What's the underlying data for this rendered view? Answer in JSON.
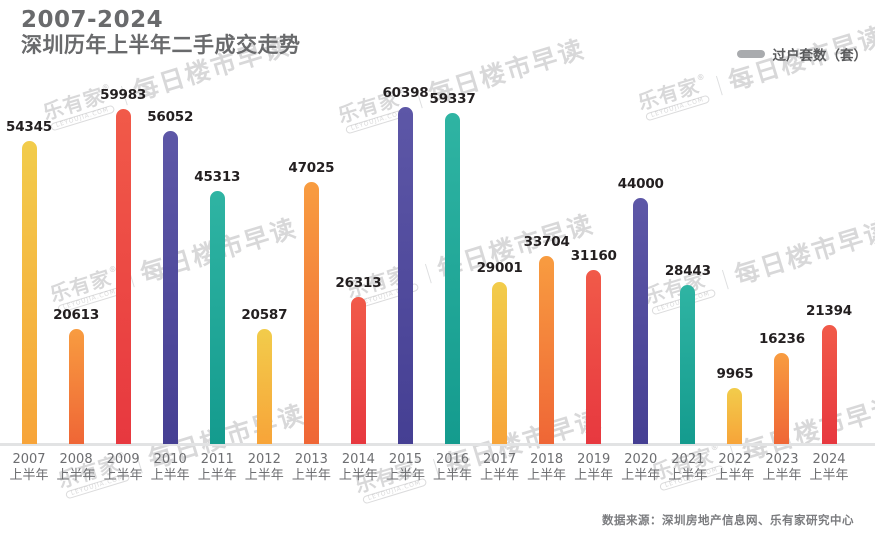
{
  "header": {
    "title_line1": "2007-2024",
    "title_line2": "深圳历年上半年二手成交走势"
  },
  "legend": {
    "label": "过户套数（套）",
    "swatch_color": "#A9ABAE"
  },
  "watermark": {
    "brand": "乐有家",
    "brand_mark": "®",
    "brand_sub": "LEYOUJIA.COM",
    "separator": "|",
    "phrase": "每日楼市早读"
  },
  "footer": {
    "source": "数据来源：深圳房地产信息网、乐有家研究中心"
  },
  "chart_data": {
    "type": "bar",
    "title": "2007-2024 深圳历年上半年二手成交走势",
    "series_name": "过户套数（套）",
    "categories": [
      "2007 上半年",
      "2008 上半年",
      "2009 上半年",
      "2010 上半年",
      "2011 上半年",
      "2012 上半年",
      "2013 上半年",
      "2014 上半年",
      "2015 上半年",
      "2016 上半年",
      "2017 上半年",
      "2018 上半年",
      "2019 上半年",
      "2020 上半年",
      "2021 上半年",
      "2022 上半年",
      "2023 上半年",
      "2024 上半年"
    ],
    "values": [
      54345,
      20613,
      59983,
      56052,
      45313,
      20587,
      47025,
      26313,
      60398,
      59337,
      29001,
      33704,
      31160,
      44000,
      28443,
      9965,
      16236,
      21394
    ],
    "xlabel": "",
    "ylabel": "",
    "ylim": [
      0,
      63000
    ],
    "grid": false,
    "y_axis_visible": false,
    "data_labels": true,
    "legend_position": "top-right",
    "palette": [
      {
        "name": "yellow-orange",
        "top": "#F2CC4B",
        "bottom": "#F7A439"
      },
      {
        "name": "orange",
        "top": "#F89C40",
        "bottom": "#EF6636"
      },
      {
        "name": "red",
        "top": "#F15A49",
        "bottom": "#E7383F"
      },
      {
        "name": "purple",
        "top": "#5D57A7",
        "bottom": "#453F93"
      },
      {
        "name": "teal",
        "top": "#2FB4A3",
        "bottom": "#149B8E"
      }
    ],
    "axis_line_color": "#E2E3E4"
  }
}
